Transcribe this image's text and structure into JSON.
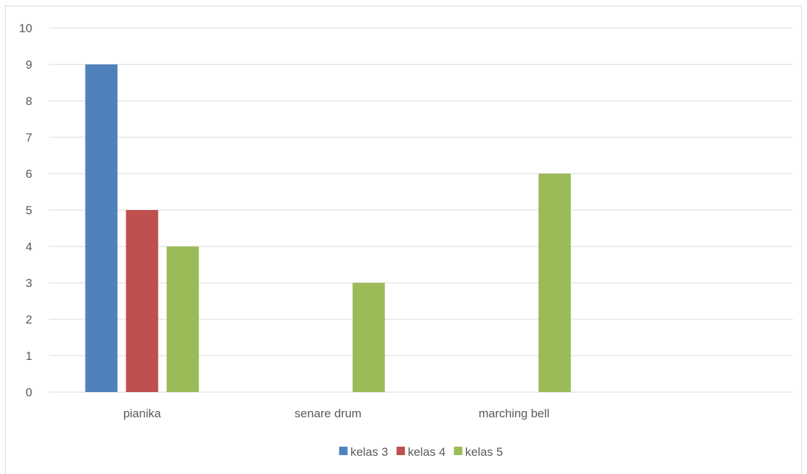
{
  "chart_data": {
    "type": "bar",
    "title": "",
    "xlabel": "",
    "ylabel": "",
    "categories": [
      "pianika",
      "senare drum",
      "marching bell",
      ""
    ],
    "series": [
      {
        "name": "kelas 3",
        "color": "#4f81bd",
        "values": [
          9,
          null,
          null,
          null
        ]
      },
      {
        "name": "kelas 4",
        "color": "#c0504d",
        "values": [
          5,
          null,
          null,
          null
        ]
      },
      {
        "name": "kelas 5",
        "color": "#9bbb59",
        "values": [
          4,
          3,
          6,
          null
        ]
      }
    ],
    "ylim": [
      0,
      10
    ],
    "yticks": [
      0,
      1,
      2,
      3,
      4,
      5,
      6,
      7,
      8,
      9,
      10
    ],
    "grid": true,
    "gridColor": "#d9d9d9",
    "legend": "bottom-center"
  }
}
